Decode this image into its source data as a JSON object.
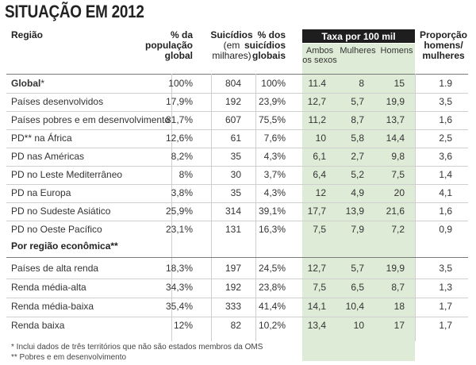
{
  "title": "SITUAÇÃO EM 2012",
  "headers": {
    "region": "Região",
    "population": [
      "% da",
      "população",
      "global"
    ],
    "suicides": [
      "Suicídios",
      "(em",
      "milhares)"
    ],
    "pct_suicides": [
      "% dos",
      "suicídios",
      "globais"
    ],
    "rate_title": "Taxa por 100 mil",
    "rate_both": [
      "Ambos",
      "os sexos"
    ],
    "rate_women": "Mulheres",
    "rate_men": "Homens",
    "ratio": [
      "Proporção",
      "homens/",
      "mulheres"
    ]
  },
  "global_label": "Global",
  "global_mark": "*",
  "rows": [
    {
      "name": "Global",
      "pop": "100%",
      "sui": "804",
      "pct": "100%",
      "both": "11.4",
      "women": "8",
      "men": "15",
      "ratio": "1.9"
    },
    {
      "name": "Países desenvolvidos",
      "pop": "17,9%",
      "sui": "192",
      "pct": "23,9%",
      "both": "12,7",
      "women": "5,7",
      "men": "19,9",
      "ratio": "3,5"
    },
    {
      "name": "Países pobres e em desenvolvimento",
      "pop": "81,7%",
      "sui": "607",
      "pct": "75,5%",
      "both": "11,2",
      "women": "8,7",
      "men": "13,7",
      "ratio": "1,6"
    },
    {
      "name": "PD** na África",
      "pop": "12,6%",
      "sui": "61",
      "pct": "7,6%",
      "both": "10",
      "women": "5,8",
      "men": "14,4",
      "ratio": "2,5"
    },
    {
      "name": "PD nas Américas",
      "pop": "8,2%",
      "sui": "35",
      "pct": "4,3%",
      "both": "6,1",
      "women": "2,7",
      "men": "9,8",
      "ratio": "3,6"
    },
    {
      "name": "PD no Leste Mediterrâneo",
      "pop": "8%",
      "sui": "30",
      "pct": "3,7%",
      "both": "6,4",
      "women": "5,2",
      "men": "7,5",
      "ratio": "1,4"
    },
    {
      "name": "PD na Europa",
      "pop": "3,8%",
      "sui": "35",
      "pct": "4,3%",
      "both": "12",
      "women": "4,9",
      "men": "20",
      "ratio": "4,1"
    },
    {
      "name": "PD no Sudeste Asiático",
      "pop": "25,9%",
      "sui": "314",
      "pct": "39,1%",
      "both": "17,7",
      "women": "13,9",
      "men": "21,6",
      "ratio": "1,6"
    },
    {
      "name": "PD no Oeste Pacífico",
      "pop": "23,1%",
      "sui": "131",
      "pct": "16,3%",
      "both": "7,5",
      "women": "7,9",
      "men": "7,2",
      "ratio": "0,9"
    }
  ],
  "section2": "Por região econômica**",
  "rows2": [
    {
      "name": "Países de alta renda",
      "pop": "18,3%",
      "sui": "197",
      "pct": "24,5%",
      "both": "12,7",
      "women": "5,7",
      "men": "19,9",
      "ratio": "3,5"
    },
    {
      "name": "Renda média-alta",
      "pop": "34,3%",
      "sui": "192",
      "pct": "23,8%",
      "both": "7,5",
      "women": "6,5",
      "men": "8,7",
      "ratio": "1,3"
    },
    {
      "name": "Renda média-baixa",
      "pop": "35,4%",
      "sui": "333",
      "pct": "41,4%",
      "both": "14,1",
      "women": "10,4",
      "men": "18",
      "ratio": "1,7"
    },
    {
      "name": "Renda baixa",
      "pop": "12%",
      "sui": "82",
      "pct": "10,2%",
      "both": "13,4",
      "women": "10",
      "men": "17",
      "ratio": "1,7"
    }
  ],
  "footnotes": [
    "*  Inclui dados de três territórios que não são estados membros da OMS",
    "** Pobres e em desenvolvimento"
  ]
}
